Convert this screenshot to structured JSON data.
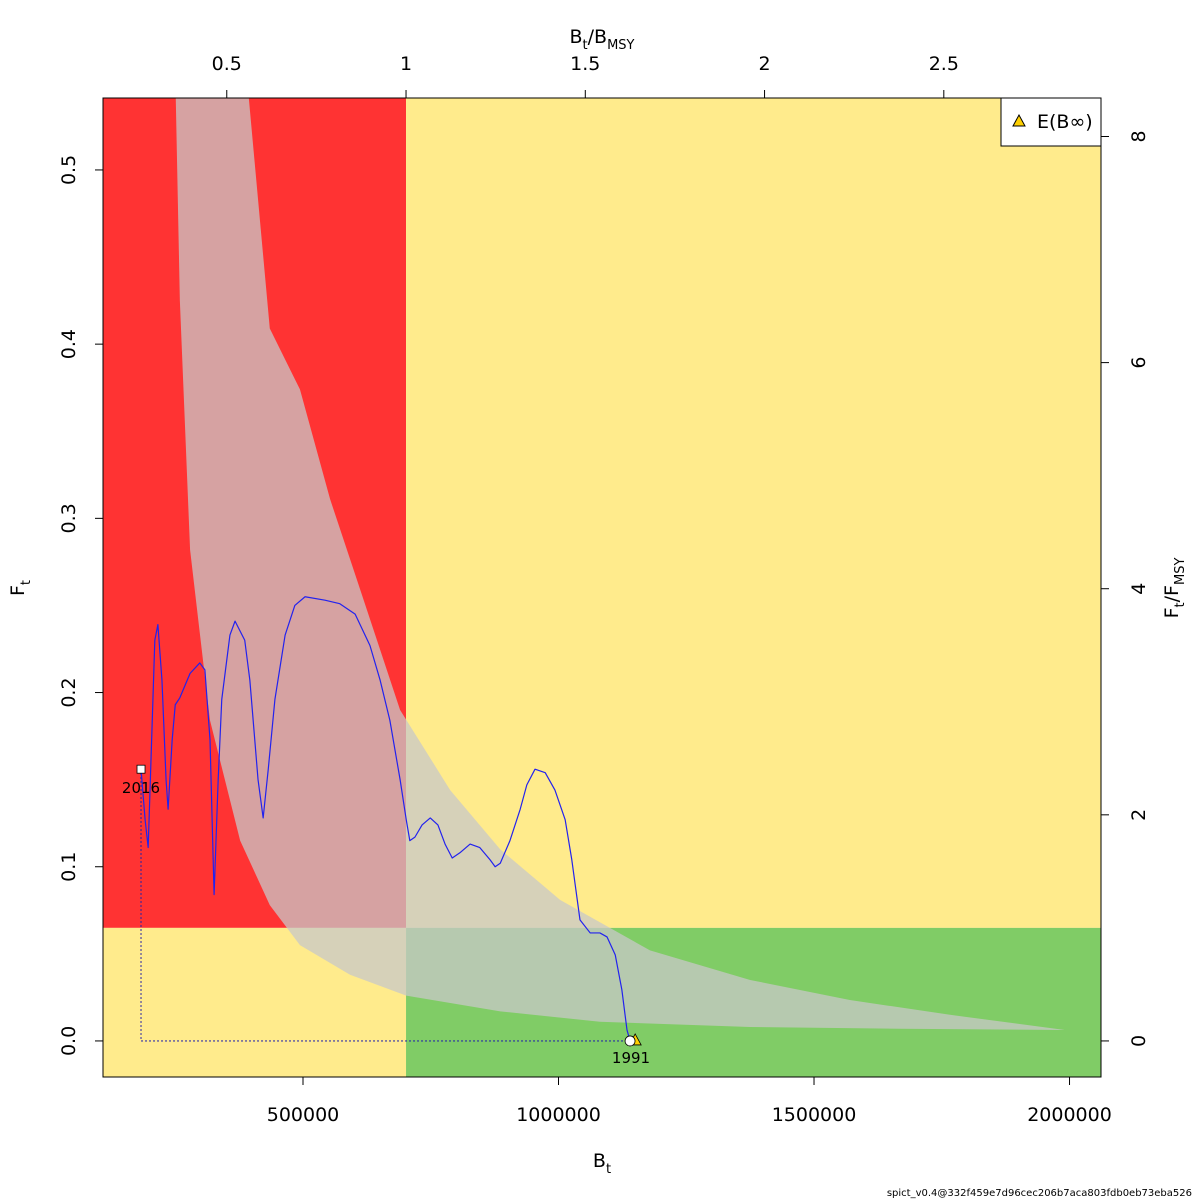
{
  "chart_data": {
    "type": "line",
    "title": "",
    "xlabel": {
      "main": "B",
      "sub": "t"
    },
    "ylabel": {
      "main": "F",
      "sub": "t"
    },
    "top_axis_label": {
      "main": "B",
      "sub1": "t",
      "sep": "/",
      "main2": "B",
      "sub2": "MSY"
    },
    "right_axis_label": {
      "main": "F",
      "sub1": "t",
      "sep": "/",
      "main2": "F",
      "sub2": "MSY"
    },
    "xlim": [
      108600,
      2061600
    ],
    "ylim": [
      -0.0207,
      0.5413
    ],
    "Bmsy": 701600,
    "Fmsy": 0.0649,
    "x_ticks": [
      500000,
      1000000,
      1500000,
      2000000
    ],
    "x_tick_labels": [
      "500000",
      "1000000",
      "1500000",
      "2000000"
    ],
    "y_ticks": [
      0.0,
      0.1,
      0.2,
      0.3,
      0.4,
      0.5
    ],
    "y_tick_labels": [
      "0.0",
      "0.1",
      "0.2",
      "0.3",
      "0.4",
      "0.5"
    ],
    "top_ticks": [
      0.5,
      1,
      1.5,
      2,
      2.5
    ],
    "top_tick_labels": [
      "0.5",
      "1",
      "1.5",
      "2",
      "2.5"
    ],
    "right_ticks": [
      0,
      2,
      4,
      6,
      8
    ],
    "right_tick_labels": [
      "0",
      "2",
      "4",
      "6",
      "8"
    ],
    "colors": {
      "red": "#FF3333",
      "yellow": "#FFEB8C",
      "green": "#80CC66",
      "band": "#C8C8C8",
      "line": "#2222EE",
      "triangle": "#FFD000"
    },
    "legend": {
      "position": "top-right",
      "entries": [
        {
          "label": "E(B∞)",
          "marker": "triangle"
        }
      ]
    },
    "start_label": "1991",
    "end_label": "2016",
    "E_Binf": {
      "B": 1150000,
      "F": 0.0
    },
    "msy_band_upper": [
      [
        394000,
        0.541
      ],
      [
        435000,
        0.409
      ],
      [
        494000,
        0.374
      ],
      [
        553000,
        0.311
      ],
      [
        612000,
        0.259
      ],
      [
        690000,
        0.19
      ],
      [
        788000,
        0.144
      ],
      [
        886000,
        0.11
      ],
      [
        1003000,
        0.081
      ],
      [
        1179000,
        0.052
      ],
      [
        1375000,
        0.035
      ],
      [
        1570000,
        0.0235
      ],
      [
        1766000,
        0.015
      ],
      [
        1991000,
        0.0063
      ]
    ],
    "msy_band_lower": [
      [
        251000,
        0.541
      ],
      [
        259000,
        0.425
      ],
      [
        279000,
        0.282
      ],
      [
        318000,
        0.184
      ],
      [
        377000,
        0.115
      ],
      [
        435000,
        0.078
      ],
      [
        494000,
        0.055
      ],
      [
        592000,
        0.038
      ],
      [
        702000,
        0.026
      ],
      [
        886000,
        0.017
      ],
      [
        1081000,
        0.011
      ],
      [
        1375000,
        0.008
      ],
      [
        1668000,
        0.007
      ],
      [
        1991000,
        0.0063
      ]
    ],
    "trajectory": [
      [
        1140000,
        0
      ],
      [
        1134000,
        0.0063
      ],
      [
        1124000,
        0.0293
      ],
      [
        1111000,
        0.0494
      ],
      [
        1095000,
        0.0597
      ],
      [
        1081000,
        0.062
      ],
      [
        1062000,
        0.062
      ],
      [
        1042000,
        0.0695
      ],
      [
        1026000,
        0.104
      ],
      [
        1013000,
        0.127
      ],
      [
        993000,
        0.144
      ],
      [
        974000,
        0.154
      ],
      [
        954000,
        0.156
      ],
      [
        938000,
        0.147
      ],
      [
        925000,
        0.133
      ],
      [
        905000,
        0.115
      ],
      [
        886000,
        0.102
      ],
      [
        876000,
        0.1
      ],
      [
        866000,
        0.104
      ],
      [
        846000,
        0.111
      ],
      [
        827000,
        0.113
      ],
      [
        807000,
        0.108
      ],
      [
        792000,
        0.105
      ],
      [
        778000,
        0.113
      ],
      [
        764000,
        0.124
      ],
      [
        749000,
        0.128
      ],
      [
        733000,
        0.124
      ],
      [
        719000,
        0.117
      ],
      [
        709000,
        0.115
      ],
      [
        702000,
        0.127
      ],
      [
        690000,
        0.15
      ],
      [
        670000,
        0.184
      ],
      [
        651000,
        0.207
      ],
      [
        631000,
        0.227
      ],
      [
        602000,
        0.245
      ],
      [
        572000,
        0.251
      ],
      [
        543000,
        0.253
      ],
      [
        504000,
        0.255
      ],
      [
        484000,
        0.25
      ],
      [
        465000,
        0.233
      ],
      [
        445000,
        0.196
      ],
      [
        432000,
        0.156
      ],
      [
        422000,
        0.128
      ],
      [
        412000,
        0.15
      ],
      [
        396000,
        0.207
      ],
      [
        386000,
        0.23
      ],
      [
        367000,
        0.241
      ],
      [
        357000,
        0.233
      ],
      [
        341000,
        0.196
      ],
      [
        334000,
        0.15
      ],
      [
        326000,
        0.084
      ],
      [
        318000,
        0.173
      ],
      [
        308000,
        0.213
      ],
      [
        298000,
        0.217
      ],
      [
        279000,
        0.211
      ],
      [
        259000,
        0.197
      ],
      [
        250000,
        0.193
      ],
      [
        244000,
        0.173
      ],
      [
        236000,
        0.133
      ],
      [
        232000,
        0.15
      ],
      [
        224000,
        0.207
      ],
      [
        216000,
        0.239
      ],
      [
        210000,
        0.23
      ],
      [
        205000,
        0.184
      ],
      [
        197000,
        0.111
      ],
      [
        191000,
        0.127
      ],
      [
        183000,
        0.156
      ]
    ]
  },
  "footer": "spict_v0.4@332f459e7d96cec206b7aca803fdb0eb73eba526"
}
